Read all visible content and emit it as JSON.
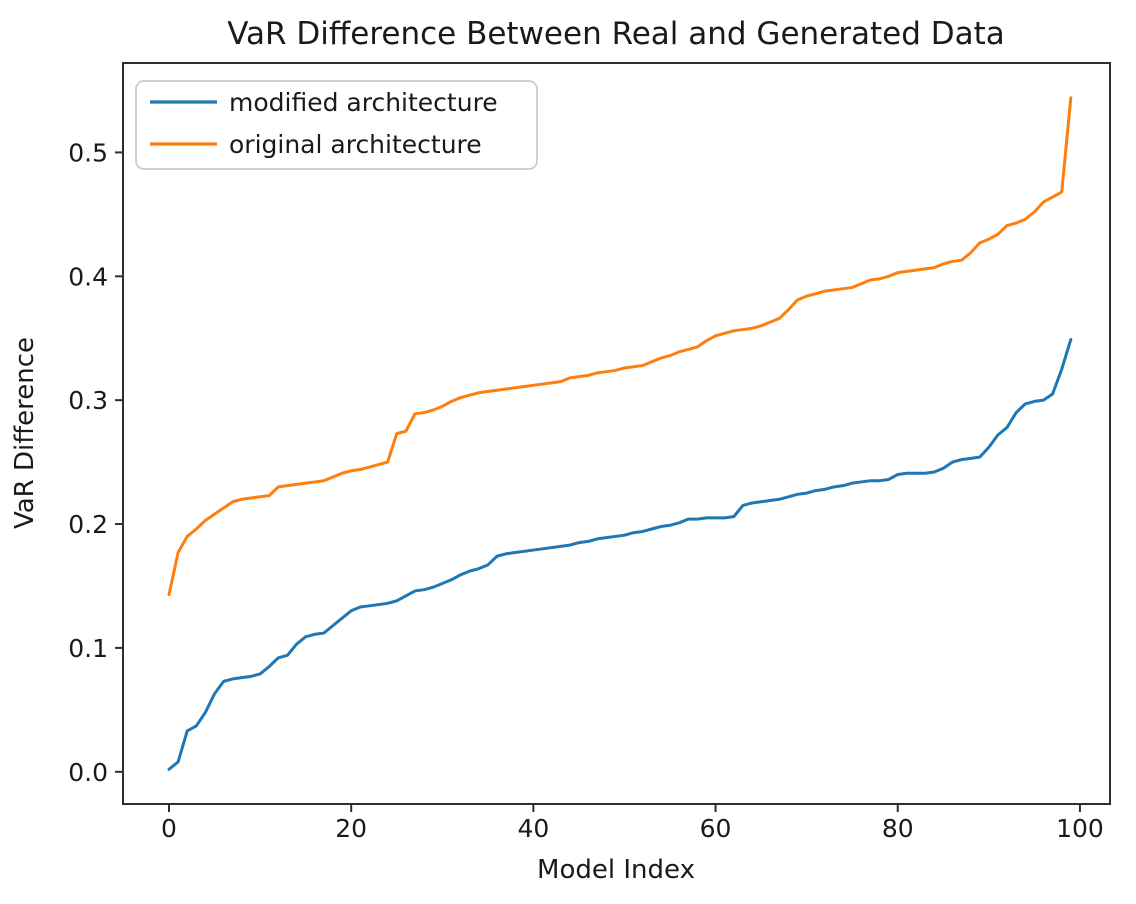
{
  "chart_data": {
    "type": "line",
    "title": "VaR Difference Between Real and Generated Data",
    "xlabel": "Model Index",
    "ylabel": "VaR Difference",
    "xlim": [
      -5.05,
      103.3
    ],
    "ylim": [
      -0.026,
      0.573
    ],
    "xticks": [
      0,
      20,
      40,
      60,
      80,
      100
    ],
    "yticks": [
      0.0,
      0.1,
      0.2,
      0.3,
      0.4,
      0.5
    ],
    "grid": false,
    "legend_position": "upper left",
    "x": [
      0,
      1,
      2,
      3,
      4,
      5,
      6,
      7,
      8,
      9,
      10,
      11,
      12,
      13,
      14,
      15,
      16,
      17,
      18,
      19,
      20,
      21,
      22,
      23,
      24,
      25,
      26,
      27,
      28,
      29,
      30,
      31,
      32,
      33,
      34,
      35,
      36,
      37,
      38,
      39,
      40,
      41,
      42,
      43,
      44,
      45,
      46,
      47,
      48,
      49,
      50,
      51,
      52,
      53,
      54,
      55,
      56,
      57,
      58,
      59,
      60,
      61,
      62,
      63,
      64,
      65,
      66,
      67,
      68,
      69,
      70,
      71,
      72,
      73,
      74,
      75,
      76,
      77,
      78,
      79,
      80,
      81,
      82,
      83,
      84,
      85,
      86,
      87,
      88,
      89,
      90,
      91,
      92,
      93,
      94,
      95,
      96,
      97,
      98,
      99
    ],
    "series": [
      {
        "name": "modified architecture",
        "color": "#1f77b4",
        "values": [
          0.002,
          0.008,
          0.033,
          0.037,
          0.048,
          0.063,
          0.073,
          0.075,
          0.076,
          0.077,
          0.079,
          0.085,
          0.092,
          0.094,
          0.103,
          0.109,
          0.111,
          0.112,
          0.118,
          0.124,
          0.13,
          0.133,
          0.134,
          0.135,
          0.136,
          0.138,
          0.142,
          0.146,
          0.147,
          0.149,
          0.152,
          0.155,
          0.159,
          0.162,
          0.164,
          0.167,
          0.174,
          0.176,
          0.177,
          0.178,
          0.179,
          0.18,
          0.181,
          0.182,
          0.183,
          0.185,
          0.186,
          0.188,
          0.189,
          0.19,
          0.191,
          0.193,
          0.194,
          0.196,
          0.198,
          0.199,
          0.201,
          0.204,
          0.204,
          0.205,
          0.205,
          0.205,
          0.206,
          0.215,
          0.217,
          0.218,
          0.219,
          0.22,
          0.222,
          0.224,
          0.225,
          0.227,
          0.228,
          0.23,
          0.231,
          0.233,
          0.234,
          0.235,
          0.235,
          0.236,
          0.24,
          0.241,
          0.241,
          0.241,
          0.242,
          0.245,
          0.25,
          0.252,
          0.253,
          0.254,
          0.262,
          0.272,
          0.278,
          0.29,
          0.297,
          0.299,
          0.3,
          0.305,
          0.325,
          0.349
        ]
      },
      {
        "name": "original architecture",
        "color": "#ff7f0e",
        "values": [
          0.143,
          0.177,
          0.19,
          0.196,
          0.203,
          0.208,
          0.213,
          0.218,
          0.22,
          0.221,
          0.222,
          0.223,
          0.23,
          0.231,
          0.232,
          0.233,
          0.234,
          0.235,
          0.238,
          0.241,
          0.243,
          0.244,
          0.246,
          0.248,
          0.25,
          0.273,
          0.275,
          0.289,
          0.29,
          0.292,
          0.295,
          0.299,
          0.302,
          0.304,
          0.306,
          0.307,
          0.308,
          0.309,
          0.31,
          0.311,
          0.312,
          0.313,
          0.314,
          0.315,
          0.318,
          0.319,
          0.32,
          0.322,
          0.323,
          0.324,
          0.326,
          0.327,
          0.328,
          0.331,
          0.334,
          0.336,
          0.339,
          0.341,
          0.343,
          0.348,
          0.352,
          0.354,
          0.356,
          0.357,
          0.358,
          0.36,
          0.363,
          0.366,
          0.373,
          0.381,
          0.384,
          0.386,
          0.388,
          0.389,
          0.39,
          0.391,
          0.394,
          0.397,
          0.398,
          0.4,
          0.403,
          0.404,
          0.405,
          0.406,
          0.407,
          0.41,
          0.412,
          0.413,
          0.419,
          0.427,
          0.43,
          0.434,
          0.441,
          0.443,
          0.446,
          0.452,
          0.46,
          0.464,
          0.468,
          0.544
        ]
      }
    ]
  }
}
